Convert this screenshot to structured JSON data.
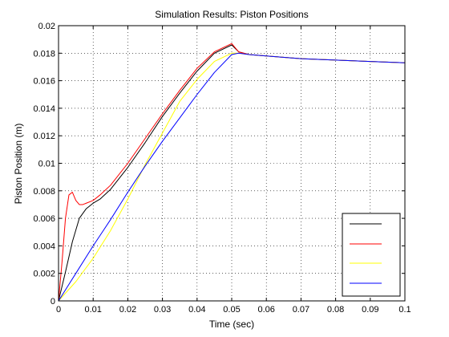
{
  "chart_data": {
    "type": "line",
    "title": "Simulation Results: Piston Positions",
    "xlabel": "Time (sec)",
    "ylabel": "Piston Position (m)",
    "xlim": [
      0,
      0.1
    ],
    "ylim": [
      0,
      0.02
    ],
    "xticks": [
      0,
      0.01,
      0.02,
      0.03,
      0.04,
      0.05,
      0.06,
      0.07,
      0.08,
      0.09,
      0.1
    ],
    "xtick_labels": [
      "0",
      "0.01",
      "0.02",
      "0.03",
      "0.04",
      "0.05",
      "0.06",
      "0.07",
      "0.08",
      "0.09",
      "0.1"
    ],
    "yticks": [
      0,
      0.002,
      0.004,
      0.006,
      0.008,
      0.01,
      0.012,
      0.014,
      0.016,
      0.018,
      0.02
    ],
    "ytick_labels": [
      "0",
      "0.002",
      "0.004",
      "0.006",
      "0.008",
      "0.01",
      "0.012",
      "0.014",
      "0.016",
      "0.018",
      "0.02"
    ],
    "grid": true,
    "legend_position": "bottom-right",
    "series": [
      {
        "color": "#000000",
        "x": [
          0,
          0.002,
          0.004,
          0.006,
          0.008,
          0.01,
          0.012,
          0.015,
          0.02,
          0.025,
          0.03,
          0.035,
          0.04,
          0.045,
          0.05,
          0.052,
          0.055,
          0.06,
          0.07,
          0.08,
          0.09,
          0.1
        ],
        "y": [
          0,
          0.0021,
          0.0043,
          0.006,
          0.0067,
          0.0071,
          0.0074,
          0.0081,
          0.0097,
          0.0115,
          0.0134,
          0.0151,
          0.0167,
          0.018,
          0.0186,
          0.0181,
          0.0179,
          0.0178,
          0.0176,
          0.0175,
          0.0174,
          0.0173
        ]
      },
      {
        "color": "#ff0000",
        "x": [
          0,
          0.001,
          0.002,
          0.003,
          0.004,
          0.005,
          0.006,
          0.007,
          0.008,
          0.01,
          0.012,
          0.015,
          0.02,
          0.025,
          0.03,
          0.035,
          0.04,
          0.045,
          0.05,
          0.052,
          0.055,
          0.06,
          0.07,
          0.08,
          0.09,
          0.1
        ],
        "y": [
          0,
          0.0028,
          0.006,
          0.0077,
          0.0079,
          0.0073,
          0.007,
          0.007,
          0.0071,
          0.0073,
          0.0077,
          0.0084,
          0.01,
          0.0118,
          0.0136,
          0.0153,
          0.0169,
          0.0181,
          0.0187,
          0.0181,
          0.0179,
          0.0178,
          0.0176,
          0.0175,
          0.0174,
          0.0173
        ]
      },
      {
        "color": "#ffff00",
        "x": [
          0,
          0.005,
          0.01,
          0.015,
          0.02,
          0.025,
          0.03,
          0.035,
          0.04,
          0.045,
          0.05,
          0.052,
          0.055,
          0.06,
          0.07,
          0.08,
          0.09,
          0.1
        ],
        "y": [
          0,
          0.0014,
          0.0031,
          0.0051,
          0.0074,
          0.0099,
          0.0122,
          0.0145,
          0.0161,
          0.0174,
          0.018,
          0.018,
          0.0179,
          0.0178,
          0.0176,
          0.0175,
          0.0174,
          0.0173
        ]
      },
      {
        "color": "#0000ff",
        "x": [
          0,
          0.003,
          0.005,
          0.01,
          0.015,
          0.02,
          0.025,
          0.03,
          0.035,
          0.04,
          0.045,
          0.05,
          0.052,
          0.055,
          0.06,
          0.07,
          0.08,
          0.09,
          0.1
        ],
        "y": [
          0,
          0.0012,
          0.002,
          0.004,
          0.0059,
          0.0079,
          0.0098,
          0.0116,
          0.0133,
          0.015,
          0.0166,
          0.0179,
          0.018,
          0.0179,
          0.0178,
          0.0176,
          0.0175,
          0.0174,
          0.0173
        ]
      }
    ]
  }
}
